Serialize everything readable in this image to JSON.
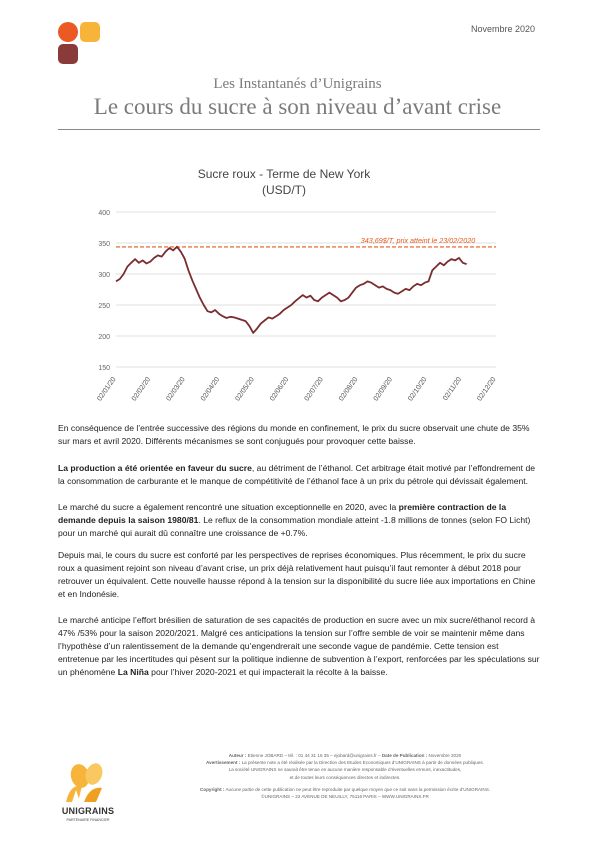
{
  "header": {
    "date": "Novembre 2020",
    "series_title": "Les Instantanés d’Unigrains",
    "title": "Le cours du sucre à son niveau d’avant crise"
  },
  "chart_data": {
    "type": "line",
    "title_line1": "Sucre roux - Terme de New York",
    "title_line2": "(USD/T)",
    "ylim": [
      150,
      400
    ],
    "yticks": [
      "150",
      "200",
      "250",
      "300",
      "350",
      "400"
    ],
    "xticks": [
      "02/01/20",
      "02/02/20",
      "02/03/20",
      "02/04/20",
      "02/05/20",
      "02/06/20",
      "02/07/20",
      "02/08/20",
      "02/09/20",
      "02/10/20",
      "02/11/20",
      "02/12/20"
    ],
    "reference_line": {
      "value": 343.7,
      "label": "343,69$/T, prix atteint le 23/02/2020"
    },
    "line_color": "#7a2c2f",
    "reference_color": "#e05a1c",
    "series": [
      {
        "values": [
          288,
          292,
          300,
          312,
          318,
          324,
          318,
          322,
          317,
          320,
          326,
          330,
          328,
          336,
          342,
          338,
          344,
          336,
          325,
          306,
          290,
          276,
          262,
          250,
          240,
          238,
          242,
          236,
          232,
          229,
          231,
          230,
          228,
          226,
          224,
          216,
          205,
          212,
          220,
          225,
          230,
          228,
          232,
          236,
          242,
          246,
          250,
          256,
          261,
          266,
          262,
          265,
          258,
          256,
          262,
          266,
          270,
          266,
          262,
          256,
          258,
          262,
          270,
          278,
          282,
          284,
          288,
          286,
          282,
          278,
          280,
          276,
          274,
          270,
          268,
          272,
          276,
          274,
          280,
          284,
          282,
          286,
          288,
          306,
          312,
          318,
          314,
          320,
          324,
          322,
          326,
          318,
          316
        ]
      }
    ]
  },
  "body": {
    "p1": "En conséquence de l’entrée successive des régions du monde en confinement, le prix du sucre observait une chute de 35% sur mars et avril 2020. Différents mécanismes se sont conjugués pour provoquer cette baisse.",
    "p2_bold": "La production a été orientée en faveur du sucre",
    "p2_rest": ", au détriment de l’éthanol. Cet arbitrage était motivé par l’effondrement de la consommation de carburante et le manque de compétitivité de l’éthanol face à un prix du pétrole qui dévissait également.",
    "p3_start": "Le marché du sucre a également rencontré une situation exceptionnelle en 2020, avec la ",
    "p3_bold": "première contraction de la demande depuis la saison 1980/81",
    "p3_end": ". Le reflux de la consommation mondiale atteint -1.8 millions de tonnes (selon FO Licht) pour un marché qui aurait dû connaître une croissance de +0.7%.",
    "p4": "Depuis mai, le cours du sucre est conforté par les perspectives de reprises économiques. Plus récemment, le prix du sucre roux a quasiment rejoint son niveau d’avant crise, un prix déjà relativement haut puisqu’il faut remonter à début 2018 pour retrouver un équivalent. Cette nouvelle hausse répond à la tension sur la disponibilité du sucre liée aux importations en Chine et en Indonésie.",
    "p5_start": "Le marché anticipe l’effort brésilien de saturation de ses capacités de production en sucre avec un mix sucre/éthanol record à 47% /53% pour la saison 2020/2021. Malgré ces anticipations la tension sur l’offre semble de voir se maintenir même dans l’hypothèse d’un ralentissement de la demande qu’engendrerait une seconde vague de pandémie. Cette tension est entretenue par les incertitudes qui pèsent sur la politique indienne de subvention à l’export, renforcées par les spéculations sur un phénomène ",
    "p5_bold": "La Niña",
    "p5_end": " pour l’hiver 2020-2021 et qui impacterait la récolte à la baisse."
  },
  "footer": {
    "author_label": "Auteur :",
    "author": "Etienne JOBARD – tél. : 01 44 31 16 35 – ejobard@unigrains.fr –",
    "pub_label": "Date de Publication :",
    "pub": "Novembre 2020",
    "warn_label": "Avertissement :",
    "warn1": "La présente note a été réalisée par la Direction des Etudes Economiques d’UNIGRAINS à partir de données publiques.",
    "warn2": "La société UNIGRAINS ne saurait être tenue en aucune manière responsable d’éventuelles erreurs, inexactitudes,",
    "warn3": "et de toutes leurs conséquences directes et indirectes.",
    "copy_label": "Copyright :",
    "copy1": "Aucune partie de cette publication ne peut être reproduite par quelque moyen que ce soit sans la permission écrite d’UNIGRAINS.",
    "copy2": "©UNIGRAINS – 23 AVENUE DE NEUILLY, 75116 PARIS – WWW.UNIGRAINS.FR"
  },
  "brand": {
    "name": "UNIGRAINS",
    "tagline": "PARTENAIRE FINANCIER"
  },
  "colors": {
    "logo_orange": "#ec5a24",
    "logo_yellow": "#f7b43a",
    "logo_maroon": "#8b3a3a",
    "title_gray": "#7b7b7b"
  }
}
